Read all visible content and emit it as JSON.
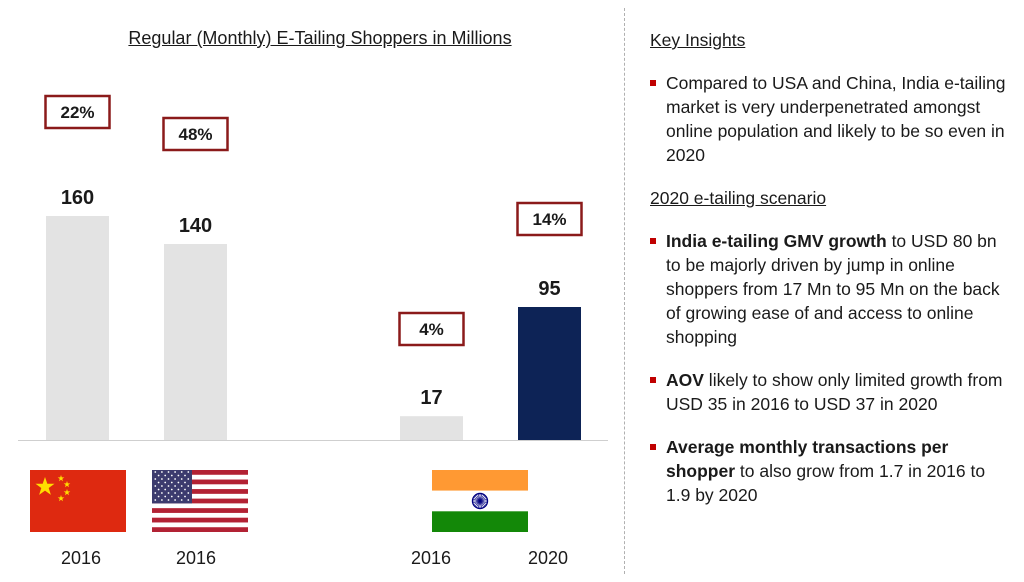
{
  "chart_data": {
    "type": "bar",
    "title": "Regular (Monthly) E-Tailing Shoppers in Millions",
    "categories": [
      "2016",
      "2016",
      "2016",
      "2020"
    ],
    "countries": [
      "China",
      "USA",
      "India",
      "India"
    ],
    "values": [
      160,
      140,
      17,
      95
    ],
    "value_labels": [
      "160",
      "140",
      "17",
      "95"
    ],
    "penetration_labels": [
      "22%",
      "48%",
      "4%",
      "14%"
    ],
    "colors": [
      "#e3e3e3",
      "#e3e3e3",
      "#e3e3e3",
      "#0d2356"
    ],
    "ylim": [
      0,
      170
    ],
    "grid": false,
    "legend": "none",
    "xlabel": "",
    "ylabel": ""
  },
  "insights": {
    "heading": "Key Insights",
    "bullet1": "Compared to USA and China, India e-tailing market is very underpenetrated amongst online population and likely to be so even in 2020",
    "subheading": "2020 e-tailing scenario",
    "bullet2_bold": "India e-tailing GMV growth",
    "bullet2_rest": " to USD 80 bn to be majorly driven by jump in online shoppers from 17 Mn to 95 Mn on the back of growing ease of and access to online shopping",
    "bullet3_bold": "AOV",
    "bullet3_rest": " likely to show only limited growth from USD 35 in 2016 to USD 37 in 2020",
    "bullet4_bold": "Average monthly transactions per shopper",
    "bullet4_rest": " to also grow from 1.7 in 2016 to 1.9 by 2020"
  },
  "colors": {
    "accent_red": "#c00000",
    "box_border": "#8b1a1a",
    "bar_gray": "#e3e3e3",
    "bar_navy": "#0d2356"
  }
}
